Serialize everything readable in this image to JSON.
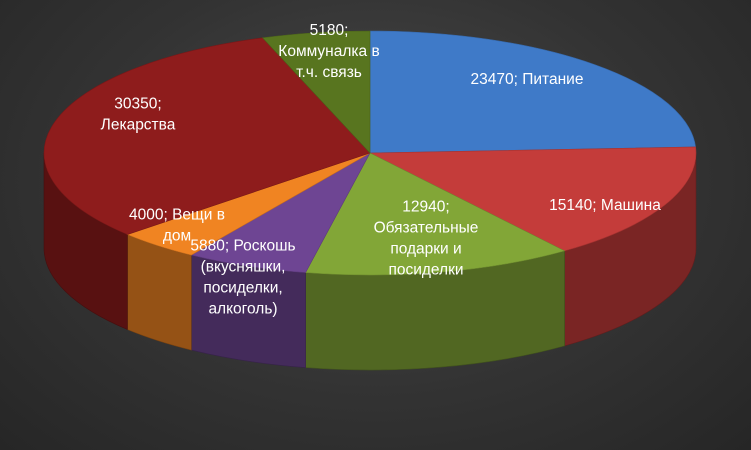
{
  "chart_data": {
    "type": "pie",
    "variant": "3d",
    "title": "",
    "legend": "none",
    "slices": [
      {
        "value": 23470,
        "label": "Питание",
        "color": "#3f7ac8",
        "label_lines": [
          "23470; Питание"
        ]
      },
      {
        "value": 15140,
        "label": "Машина",
        "color": "#c43c3a",
        "label_lines": [
          "15140; Машина"
        ]
      },
      {
        "value": 12940,
        "label": "Обязательные подарки и посиделки",
        "color": "#82a637",
        "label_lines": [
          "12940;",
          "Обязательные",
          "подарки и",
          "посиделки"
        ]
      },
      {
        "value": 5880,
        "label": "Роскошь (вкусняшки, посиделки, алкоголь)",
        "color": "#6e4593",
        "label_lines": [
          "5880; Роскошь",
          "(вкусняшки,",
          "посиделки,",
          "алкоголь)"
        ]
      },
      {
        "value": 4000,
        "label": "Вещи в дом",
        "color": "#f08422",
        "label_lines": [
          "4000; Вещи в",
          "дом"
        ]
      },
      {
        "value": 30350,
        "label": "Лекарства",
        "color": "#8e1c1c",
        "label_lines": [
          "30350;",
          "Лекарства"
        ]
      },
      {
        "value": 5180,
        "label": "Коммуналка в т.ч. связь",
        "color": "#58751f",
        "label_lines": [
          "5180;",
          "Коммуналка в",
          "т.ч. связь"
        ]
      }
    ]
  }
}
